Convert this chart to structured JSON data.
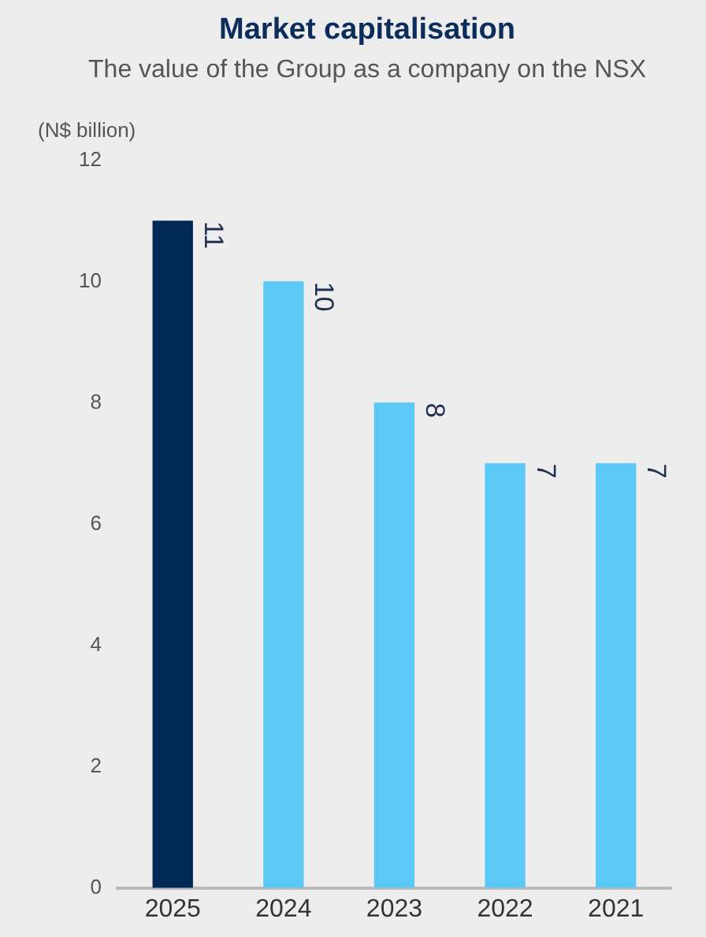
{
  "chart_data": {
    "type": "bar",
    "title": "Market capitalisation",
    "subtitle": "The value of the Group as a company on the NSX",
    "ylabel": "(N$ billion)",
    "categories": [
      "2025",
      "2024",
      "2023",
      "2022",
      "2021"
    ],
    "values": [
      11,
      10,
      8,
      7,
      7
    ],
    "colors": [
      "#002855",
      "#5bc8f5",
      "#5bc8f5",
      "#5bc8f5",
      "#5bc8f5"
    ],
    "ylim": [
      0,
      12
    ],
    "yticks": [
      0,
      2,
      4,
      6,
      8,
      10,
      12
    ],
    "grid": false,
    "legend": false,
    "data_labels": true
  }
}
